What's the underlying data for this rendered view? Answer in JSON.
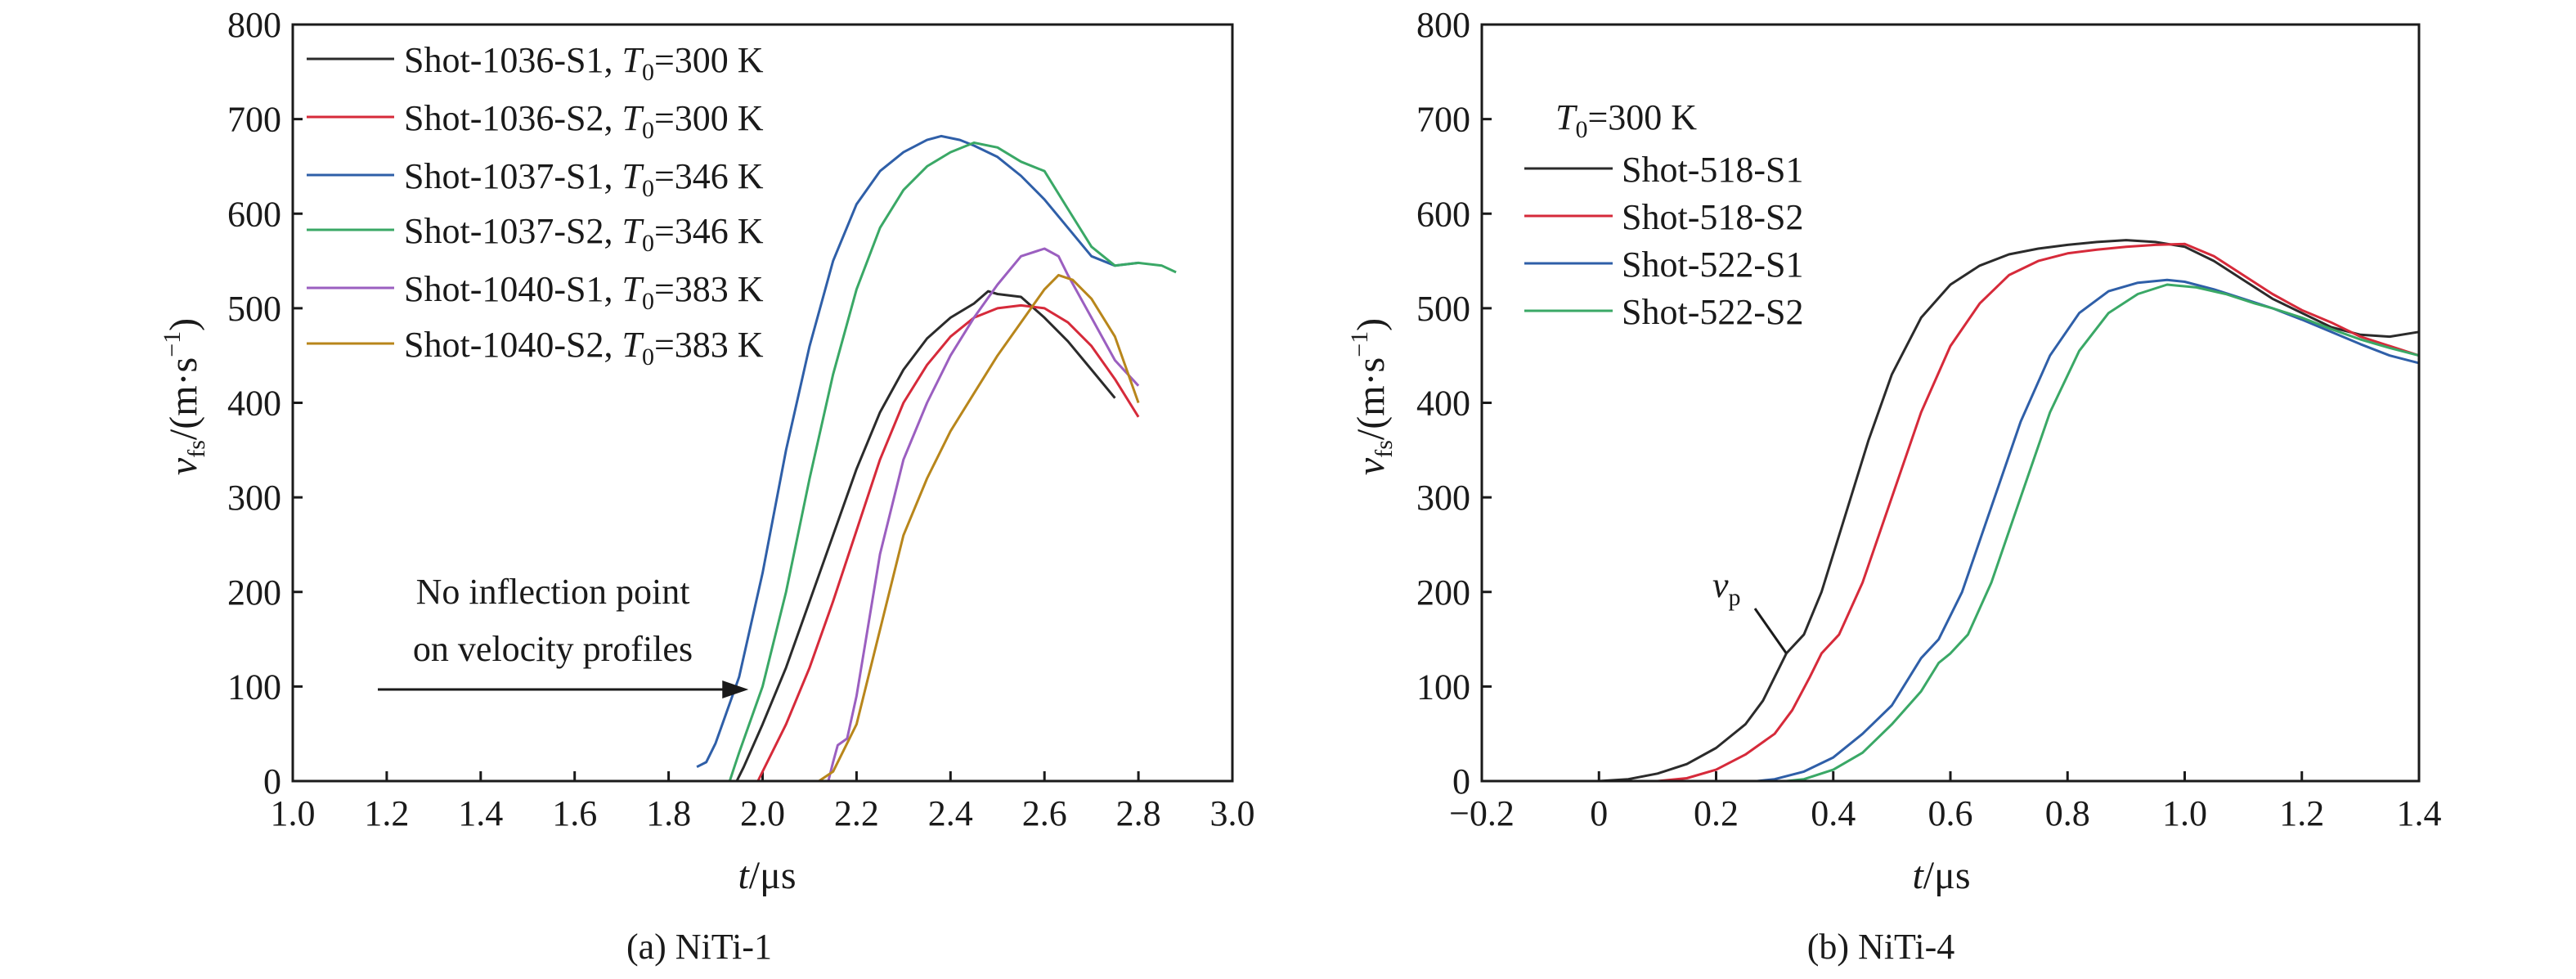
{
  "chart_data": [
    {
      "type": "line",
      "caption": "(a) NiTi-1",
      "xlabel": "t/μs",
      "ylabel": "v_fs/(m·s^-1)",
      "xlim": [
        1.0,
        3.0
      ],
      "ylim": [
        0,
        800
      ],
      "x_ticks": [
        "1.0",
        "1.2",
        "1.4",
        "1.6",
        "1.8",
        "2.0",
        "2.2",
        "2.4",
        "2.6",
        "2.8",
        "3.0"
      ],
      "y_ticks": [
        "0",
        "100",
        "200",
        "300",
        "400",
        "500",
        "600",
        "700",
        "800"
      ],
      "legend_position": "top-left",
      "annotation": {
        "lines": [
          "No inflection point",
          "on velocity profiles"
        ],
        "arrow_target": {
          "x": 1.97,
          "y": 100
        }
      },
      "series": [
        {
          "name": "Shot-1036-S1",
          "label_prefix": "Shot-1036-S1, ",
          "temperature_label": "T0=300 K",
          "t_symbol": "T",
          "t_sub": "0",
          "t_value": "=300 K",
          "color": "#2b2b2b",
          "points": [
            [
              1.945,
              0
            ],
            [
              1.96,
              15
            ],
            [
              2.0,
              60
            ],
            [
              2.05,
              120
            ],
            [
              2.1,
              190
            ],
            [
              2.15,
              260
            ],
            [
              2.2,
              330
            ],
            [
              2.25,
              390
            ],
            [
              2.3,
              435
            ],
            [
              2.35,
              468
            ],
            [
              2.4,
              490
            ],
            [
              2.45,
              505
            ],
            [
              2.48,
              518
            ],
            [
              2.5,
              515
            ],
            [
              2.55,
              512
            ],
            [
              2.6,
              490
            ],
            [
              2.65,
              465
            ],
            [
              2.7,
              435
            ],
            [
              2.75,
              405
            ]
          ]
        },
        {
          "name": "Shot-1036-S2",
          "label_prefix": "Shot-1036-S2, ",
          "temperature_label": "T0=300 K",
          "t_symbol": "T",
          "t_sub": "0",
          "t_value": "=300 K",
          "color": "#d62a3a",
          "points": [
            [
              1.99,
              0
            ],
            [
              2.0,
              10
            ],
            [
              2.05,
              60
            ],
            [
              2.1,
              120
            ],
            [
              2.15,
              190
            ],
            [
              2.2,
              265
            ],
            [
              2.25,
              340
            ],
            [
              2.3,
              400
            ],
            [
              2.35,
              440
            ],
            [
              2.4,
              470
            ],
            [
              2.45,
              490
            ],
            [
              2.5,
              500
            ],
            [
              2.55,
              503
            ],
            [
              2.6,
              500
            ],
            [
              2.65,
              485
            ],
            [
              2.7,
              460
            ],
            [
              2.75,
              425
            ],
            [
              2.8,
              385
            ]
          ]
        },
        {
          "name": "Shot-1037-S1",
          "label_prefix": "Shot-1037-S1, ",
          "temperature_label": "T0=346 K",
          "t_symbol": "T",
          "t_sub": "0",
          "t_value": "=346 K",
          "color": "#2f5fa8",
          "points": [
            [
              1.86,
              15
            ],
            [
              1.88,
              20
            ],
            [
              1.9,
              40
            ],
            [
              1.95,
              110
            ],
            [
              2.0,
              220
            ],
            [
              2.05,
              350
            ],
            [
              2.1,
              460
            ],
            [
              2.15,
              550
            ],
            [
              2.2,
              610
            ],
            [
              2.25,
              645
            ],
            [
              2.3,
              665
            ],
            [
              2.35,
              678
            ],
            [
              2.38,
              682
            ],
            [
              2.42,
              678
            ],
            [
              2.45,
              672
            ],
            [
              2.5,
              660
            ],
            [
              2.55,
              640
            ],
            [
              2.6,
              615
            ],
            [
              2.65,
              585
            ],
            [
              2.7,
              555
            ],
            [
              2.75,
              545
            ],
            [
              2.8,
              548
            ]
          ]
        },
        {
          "name": "Shot-1037-S2",
          "label_prefix": "Shot-1037-S2, ",
          "temperature_label": "T0=346 K",
          "t_symbol": "T",
          "t_sub": "0",
          "t_value": "=346 K",
          "color": "#3aa866",
          "points": [
            [
              1.93,
              0
            ],
            [
              1.94,
              15
            ],
            [
              1.95,
              30
            ],
            [
              2.0,
              100
            ],
            [
              2.05,
              200
            ],
            [
              2.1,
              320
            ],
            [
              2.15,
              430
            ],
            [
              2.2,
              520
            ],
            [
              2.25,
              585
            ],
            [
              2.3,
              625
            ],
            [
              2.35,
              650
            ],
            [
              2.4,
              665
            ],
            [
              2.45,
              675
            ],
            [
              2.5,
              670
            ],
            [
              2.55,
              655
            ],
            [
              2.6,
              645
            ],
            [
              2.65,
              605
            ],
            [
              2.7,
              565
            ],
            [
              2.75,
              545
            ],
            [
              2.8,
              548
            ],
            [
              2.85,
              545
            ],
            [
              2.88,
              538
            ]
          ]
        },
        {
          "name": "Shot-1040-S1",
          "label_prefix": "Shot-1040-S1, ",
          "temperature_label": "T0=383 K",
          "t_symbol": "T",
          "t_sub": "0",
          "t_value": "=383 K",
          "color": "#9b5fc0",
          "points": [
            [
              2.14,
              0
            ],
            [
              2.15,
              20
            ],
            [
              2.16,
              38
            ],
            [
              2.18,
              45
            ],
            [
              2.2,
              90
            ],
            [
              2.22,
              150
            ],
            [
              2.25,
              240
            ],
            [
              2.3,
              340
            ],
            [
              2.35,
              400
            ],
            [
              2.4,
              450
            ],
            [
              2.45,
              490
            ],
            [
              2.5,
              525
            ],
            [
              2.55,
              555
            ],
            [
              2.6,
              563
            ],
            [
              2.63,
              555
            ],
            [
              2.65,
              535
            ],
            [
              2.7,
              490
            ],
            [
              2.75,
              445
            ],
            [
              2.8,
              418
            ]
          ]
        },
        {
          "name": "Shot-1040-S2",
          "label_prefix": "Shot-1040-S2, ",
          "temperature_label": "T0=383 K",
          "t_symbol": "T",
          "t_sub": "0",
          "t_value": "=383 K",
          "color": "#b8861b",
          "points": [
            [
              2.12,
              0
            ],
            [
              2.15,
              10
            ],
            [
              2.2,
              60
            ],
            [
              2.25,
              160
            ],
            [
              2.3,
              260
            ],
            [
              2.35,
              320
            ],
            [
              2.4,
              370
            ],
            [
              2.45,
              410
            ],
            [
              2.5,
              450
            ],
            [
              2.55,
              485
            ],
            [
              2.6,
              520
            ],
            [
              2.63,
              535
            ],
            [
              2.66,
              530
            ],
            [
              2.7,
              510
            ],
            [
              2.75,
              470
            ],
            [
              2.8,
              400
            ]
          ]
        }
      ]
    },
    {
      "type": "line",
      "caption": "(b) NiTi-4",
      "xlabel": "t/μs",
      "ylabel": "v_fs/(m·s^-1)",
      "xlim": [
        -0.2,
        1.4
      ],
      "ylim": [
        0,
        800
      ],
      "x_ticks": [
        "−0.2",
        "0",
        "0.2",
        "0.4",
        "0.6",
        "0.8",
        "1.0",
        "1.2",
        "1.4"
      ],
      "y_ticks": [
        "0",
        "100",
        "200",
        "300",
        "400",
        "500",
        "600",
        "700",
        "800"
      ],
      "legend_position": "top-left",
      "legend_title": "T0=300 K",
      "legend_title_symbol": "T",
      "legend_title_sub": "0",
      "legend_title_value": "=300 K",
      "annotation": {
        "label": "v_p",
        "label_symbol": "v",
        "label_sub": "p",
        "pointer_target": {
          "x": 0.32,
          "y": 135
        }
      },
      "series": [
        {
          "name": "Shot-518-S1",
          "color": "#2b2b2b",
          "points": [
            [
              -0.2,
              0
            ],
            [
              0.0,
              0
            ],
            [
              0.05,
              2
            ],
            [
              0.1,
              8
            ],
            [
              0.15,
              18
            ],
            [
              0.2,
              35
            ],
            [
              0.25,
              60
            ],
            [
              0.28,
              85
            ],
            [
              0.3,
              110
            ],
            [
              0.32,
              135
            ],
            [
              0.35,
              155
            ],
            [
              0.38,
              200
            ],
            [
              0.42,
              280
            ],
            [
              0.46,
              360
            ],
            [
              0.5,
              430
            ],
            [
              0.55,
              490
            ],
            [
              0.6,
              525
            ],
            [
              0.65,
              545
            ],
            [
              0.7,
              557
            ],
            [
              0.75,
              563
            ],
            [
              0.8,
              567
            ],
            [
              0.85,
              570
            ],
            [
              0.9,
              572
            ],
            [
              0.95,
              570
            ],
            [
              1.0,
              565
            ],
            [
              1.05,
              550
            ],
            [
              1.1,
              530
            ],
            [
              1.15,
              510
            ],
            [
              1.2,
              495
            ],
            [
              1.25,
              480
            ],
            [
              1.3,
              472
            ],
            [
              1.35,
              470
            ],
            [
              1.4,
              475
            ]
          ]
        },
        {
          "name": "Shot-518-S2",
          "color": "#d62a3a",
          "points": [
            [
              -0.2,
              0
            ],
            [
              0.1,
              0
            ],
            [
              0.15,
              3
            ],
            [
              0.2,
              12
            ],
            [
              0.25,
              28
            ],
            [
              0.3,
              50
            ],
            [
              0.33,
              75
            ],
            [
              0.36,
              110
            ],
            [
              0.38,
              135
            ],
            [
              0.41,
              155
            ],
            [
              0.45,
              210
            ],
            [
              0.5,
              300
            ],
            [
              0.55,
              390
            ],
            [
              0.6,
              460
            ],
            [
              0.65,
              505
            ],
            [
              0.7,
              535
            ],
            [
              0.75,
              550
            ],
            [
              0.8,
              558
            ],
            [
              0.85,
              562
            ],
            [
              0.9,
              565
            ],
            [
              0.95,
              567
            ],
            [
              1.0,
              568
            ],
            [
              1.05,
              555
            ],
            [
              1.1,
              535
            ],
            [
              1.15,
              515
            ],
            [
              1.2,
              498
            ],
            [
              1.25,
              485
            ],
            [
              1.3,
              470
            ],
            [
              1.35,
              460
            ],
            [
              1.4,
              450
            ]
          ]
        },
        {
          "name": "Shot-522-S1",
          "color": "#2f5fa8",
          "points": [
            [
              -0.2,
              0
            ],
            [
              0.27,
              0
            ],
            [
              0.3,
              2
            ],
            [
              0.35,
              10
            ],
            [
              0.4,
              25
            ],
            [
              0.45,
              50
            ],
            [
              0.5,
              80
            ],
            [
              0.53,
              110
            ],
            [
              0.55,
              130
            ],
            [
              0.58,
              150
            ],
            [
              0.62,
              200
            ],
            [
              0.67,
              290
            ],
            [
              0.72,
              380
            ],
            [
              0.77,
              450
            ],
            [
              0.82,
              495
            ],
            [
              0.87,
              518
            ],
            [
              0.92,
              527
            ],
            [
              0.97,
              530
            ],
            [
              1.0,
              528
            ],
            [
              1.05,
              520
            ],
            [
              1.1,
              510
            ],
            [
              1.15,
              500
            ],
            [
              1.2,
              488
            ],
            [
              1.25,
              475
            ],
            [
              1.3,
              462
            ],
            [
              1.35,
              450
            ],
            [
              1.4,
              442
            ]
          ]
        },
        {
          "name": "Shot-522-S2",
          "color": "#3aa866",
          "points": [
            [
              -0.2,
              0
            ],
            [
              0.32,
              0
            ],
            [
              0.35,
              2
            ],
            [
              0.4,
              12
            ],
            [
              0.45,
              30
            ],
            [
              0.5,
              60
            ],
            [
              0.55,
              95
            ],
            [
              0.58,
              125
            ],
            [
              0.6,
              135
            ],
            [
              0.63,
              155
            ],
            [
              0.67,
              210
            ],
            [
              0.72,
              300
            ],
            [
              0.77,
              390
            ],
            [
              0.82,
              455
            ],
            [
              0.87,
              495
            ],
            [
              0.92,
              515
            ],
            [
              0.97,
              525
            ],
            [
              1.02,
              522
            ],
            [
              1.07,
              515
            ],
            [
              1.12,
              505
            ],
            [
              1.15,
              500
            ],
            [
              1.2,
              490
            ],
            [
              1.25,
              478
            ],
            [
              1.3,
              467
            ],
            [
              1.35,
              458
            ],
            [
              1.4,
              450
            ]
          ]
        }
      ]
    }
  ]
}
